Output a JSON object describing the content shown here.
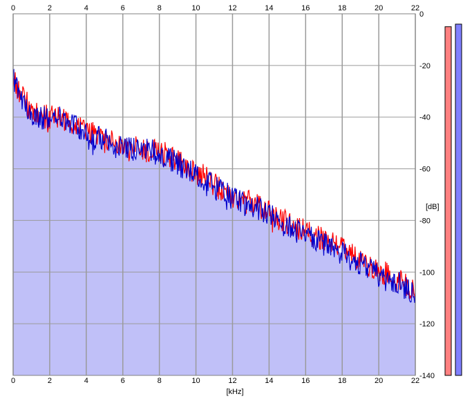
{
  "chart_data": {
    "type": "area",
    "xlabel": "[kHz]",
    "ylabel": "[dB]",
    "xlim": [
      0,
      22
    ],
    "ylim": [
      -140,
      0
    ],
    "xticks": [
      "0",
      "2",
      "4",
      "6",
      "8",
      "10",
      "12",
      "14",
      "16",
      "18",
      "20",
      "22"
    ],
    "yticks": [
      "0",
      "-20",
      "-40",
      "-60",
      "-80",
      "-100",
      "-120",
      "-140"
    ],
    "grid": true,
    "series": [
      {
        "color": "#ff0000",
        "x": [
          0,
          0.5,
          1,
          1.5,
          2,
          2.5,
          3,
          3.5,
          4,
          4.5,
          5,
          5.5,
          6,
          6.5,
          7,
          7.5,
          8,
          8.5,
          9,
          9.5,
          10,
          10.5,
          11,
          11.5,
          12,
          12.5,
          13,
          13.5,
          14,
          14.5,
          15,
          15.5,
          16,
          16.5,
          17,
          17.5,
          18,
          18.5,
          19,
          19.5,
          20,
          20.5,
          21,
          21.5,
          22
        ],
        "values": [
          -25,
          -32,
          -37,
          -39,
          -40,
          -40,
          -41,
          -43,
          -45,
          -47,
          -48,
          -50,
          -50,
          -51,
          -52,
          -53,
          -53,
          -55,
          -57,
          -59,
          -61,
          -63,
          -66,
          -68,
          -70,
          -72,
          -73,
          -75,
          -77,
          -79,
          -81,
          -83,
          -84,
          -86,
          -87,
          -89,
          -91,
          -93,
          -95,
          -97,
          -99,
          -101,
          -103,
          -105,
          -107
        ]
      },
      {
        "color": "#0000cc",
        "x": [
          0,
          0.5,
          1,
          1.5,
          2,
          2.5,
          3,
          3.5,
          4,
          4.5,
          5,
          5.5,
          6,
          6.5,
          7,
          7.5,
          8,
          8.5,
          9,
          9.5,
          10,
          10.5,
          11,
          11.5,
          12,
          12.5,
          13,
          13.5,
          14,
          14.5,
          15,
          15.5,
          16,
          16.5,
          17,
          17.5,
          18,
          18.5,
          19,
          19.5,
          20,
          20.5,
          21,
          21.5,
          22
        ],
        "values": [
          -24,
          -33,
          -38,
          -40,
          -41,
          -40,
          -42,
          -44,
          -46,
          -48,
          -48,
          -51,
          -51,
          -52,
          -53,
          -53,
          -54,
          -56,
          -58,
          -60,
          -62,
          -64,
          -67,
          -69,
          -71,
          -73,
          -74,
          -76,
          -78,
          -80,
          -82,
          -84,
          -86,
          -87,
          -89,
          -91,
          -92,
          -95,
          -97,
          -99,
          -101,
          -103,
          -104,
          -106,
          -108
        ]
      }
    ],
    "fill_color": "#c0c0f8",
    "meters": [
      {
        "color": "#ff8080",
        "value": -5
      },
      {
        "color": "#8080ff",
        "value": -4
      }
    ]
  }
}
